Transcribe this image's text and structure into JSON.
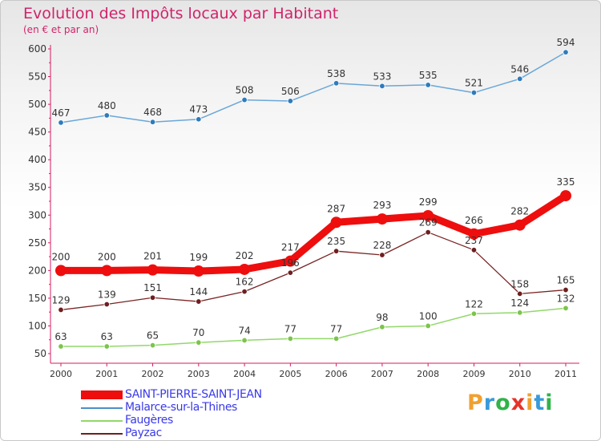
{
  "title": "Evolution des Impôts locaux par Habitant",
  "subtitle": "(en € et par an)",
  "logo": {
    "text": "Proxiti",
    "colors": [
      "#f0a030",
      "#3a9ad9",
      "#2fb34a",
      "#e6332a",
      "#f0a030",
      "#3a9ad9",
      "#2fb34a"
    ]
  },
  "chart_data": {
    "type": "line",
    "x": [
      "2000",
      "2001",
      "2002",
      "2003",
      "2004",
      "2005",
      "2006",
      "2007",
      "2008",
      "2009",
      "2010",
      "2011"
    ],
    "yticks": [
      "50",
      "100",
      "150",
      "200",
      "250",
      "300",
      "350",
      "400",
      "450",
      "500",
      "550",
      "600"
    ],
    "ylim": [
      50,
      600
    ],
    "grid": false,
    "legend_position": "bottom-left",
    "series": [
      {
        "name": "Malarce-sur-la-Thines",
        "color": "#4a90c8",
        "values": [
          467,
          480,
          468,
          473,
          508,
          506,
          538,
          533,
          535,
          521,
          546,
          594
        ]
      },
      {
        "name": "Faugères",
        "color": "#92d86a",
        "values": [
          63,
          63,
          65,
          70,
          74,
          77,
          77,
          98,
          100,
          122,
          124,
          132
        ]
      },
      {
        "name": "Payzac",
        "color": "#6e1f1f",
        "values": [
          129,
          139,
          151,
          144,
          162,
          196,
          235,
          228,
          269,
          237,
          158,
          165
        ]
      },
      {
        "name": "SAINT-PIERRE-SAINT-JEAN",
        "color": "#ee0e0e",
        "values": [
          200,
          200,
          201,
          199,
          202,
          217,
          287,
          293,
          299,
          266,
          282,
          335
        ]
      }
    ],
    "point_labels": {
      "Malarce-sur-la-Thines": [
        "467",
        "480",
        "468",
        "473",
        "508",
        "506",
        "538",
        "533",
        "535",
        "521",
        "546",
        "594"
      ],
      "Faugères": [
        "63",
        "63",
        "65",
        "70",
        "74",
        "77",
        "77",
        "98",
        "100",
        "122",
        "124",
        "132"
      ],
      "Payzac": [
        "129",
        "139",
        "151",
        "144",
        "162",
        "196",
        "235",
        "228",
        "269",
        "237",
        "158",
        "165"
      ],
      "SAINT-PIERRE-SAINT-JEAN": [
        "200",
        "200",
        "201",
        "199",
        "202",
        "217",
        "287",
        "293",
        "299",
        "266",
        "282",
        "335"
      ]
    }
  },
  "legend": [
    {
      "name": "SAINT-PIERRE-SAINT-JEAN",
      "color": "#ee0e0e",
      "thick": true
    },
    {
      "name": "Malarce-sur-la-Thines",
      "color": "#4a90c8",
      "thick": false
    },
    {
      "name": "Faugères",
      "color": "#92d86a",
      "thick": false
    },
    {
      "name": "Payzac",
      "color": "#6e1f1f",
      "thick": false
    }
  ]
}
